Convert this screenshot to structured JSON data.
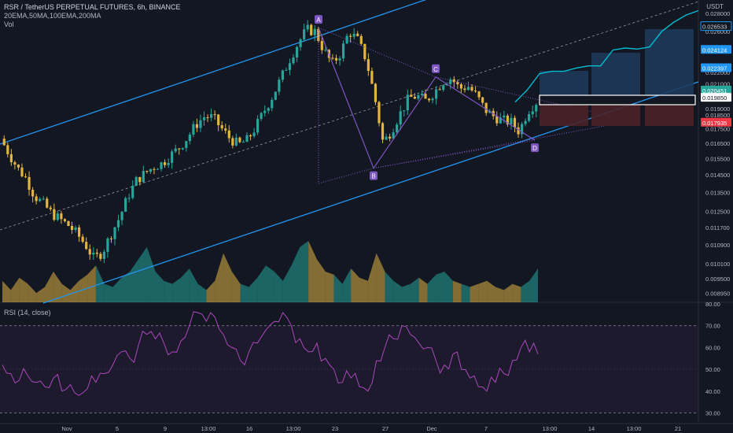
{
  "header": {
    "symbol_line": "RSR / TetherUS PERPETUAL FUTURES, 6h, BINANCE",
    "indicators_line": "20EMA,50MA,100EMA,200MA",
    "vol_label": "Vol",
    "currency": "USDT",
    "rsi_label": "RSI (14, close)"
  },
  "colors": {
    "background": "#131722",
    "up": "#26a69a",
    "down": "#e2b443",
    "channel": "#2196f3",
    "pattern": "#7e57c2",
    "forecast": "#00bcd4",
    "rsi": "#ab47bc",
    "marker_green": "#26a69a",
    "marker_red": "#f23645"
  },
  "chart_data": [
    {
      "type": "candlestick",
      "title": "RSR / TetherUS PERPETUAL FUTURES, 6h, BINANCE",
      "y_scale": "log",
      "ylim": [
        0.0088,
        0.0288
      ],
      "price_ticks": [
        "0.028000",
        "0.026000",
        "0.024000",
        "0.022000",
        "0.021000",
        "0.019000",
        "0.018500",
        "0.017500",
        "0.016500",
        "0.015500",
        "0.014500",
        "0.013500",
        "0.012500",
        "0.011700",
        "0.010900",
        "0.010100",
        "0.009500",
        "0.008950"
      ],
      "x_ticks": [
        "Nov",
        "5",
        "9",
        "13:00",
        "16",
        "13:00",
        "23",
        "27",
        "Dec",
        "7",
        "13:00",
        "14",
        "13:00",
        "21"
      ],
      "price_labels": [
        {
          "value": "0.026533",
          "style": "outline"
        },
        {
          "value": "0.024124",
          "style": "blue"
        },
        {
          "value": "0.022397",
          "style": "blue"
        },
        {
          "value": "0.020451",
          "style": "green"
        },
        {
          "value": "0.019850",
          "style": "white"
        },
        {
          "value": "0.017935",
          "style": "red"
        }
      ],
      "pattern_points": [
        {
          "label": "A",
          "value": 0.0264
        },
        {
          "label": "B",
          "value": 0.0149
        },
        {
          "label": "C",
          "value": 0.0216
        },
        {
          "label": "D",
          "value": 0.0167
        }
      ],
      "close_path": [
        0.0168,
        0.0158,
        0.0149,
        0.0143,
        0.0133,
        0.0129,
        0.0124,
        0.0121,
        0.0118,
        0.0114,
        0.0109,
        0.0103,
        0.0106,
        0.0114,
        0.0122,
        0.0133,
        0.0142,
        0.0146,
        0.015,
        0.0152,
        0.0157,
        0.0162,
        0.0169,
        0.0178,
        0.0184,
        0.0183,
        0.0175,
        0.0168,
        0.0164,
        0.0167,
        0.0176,
        0.0188,
        0.02,
        0.0215,
        0.0232,
        0.0248,
        0.0262,
        0.026,
        0.0241,
        0.0228,
        0.0238,
        0.026,
        0.0251,
        0.0232,
        0.0199,
        0.0165,
        0.0174,
        0.0186,
        0.0198,
        0.02,
        0.0196,
        0.0203,
        0.0212,
        0.0215,
        0.0206,
        0.0208,
        0.02,
        0.0189,
        0.0184,
        0.0181,
        0.018,
        0.0173,
        0.0188,
        0.0195
      ],
      "forecast_path": [
        0.0195,
        0.0205,
        0.0219,
        0.0221,
        0.0221,
        0.0224,
        0.0226,
        0.0226,
        0.0241,
        0.0243,
        0.0242,
        0.0244,
        0.026,
        0.027,
        0.0278,
        0.0283
      ],
      "volume_relative": [
        0.35,
        0.2,
        0.4,
        0.3,
        0.15,
        0.25,
        0.5,
        0.3,
        0.2,
        0.35,
        0.45,
        0.6,
        0.3,
        0.25,
        0.4,
        0.5,
        0.7,
        0.9,
        0.5,
        0.35,
        0.3,
        0.4,
        0.55,
        0.3,
        0.2,
        0.35,
        0.8,
        0.5,
        0.3,
        0.25,
        0.4,
        0.6,
        0.5,
        0.35,
        0.6,
        0.9,
        1.0,
        0.7,
        0.5,
        0.45,
        0.3,
        0.55,
        0.4,
        0.35,
        0.8,
        0.5,
        0.35,
        0.25,
        0.3,
        0.4,
        0.3,
        0.45,
        0.5,
        0.35,
        0.3,
        0.25,
        0.3,
        0.35,
        0.25,
        0.2,
        0.3,
        0.25,
        0.35,
        0.55
      ]
    },
    {
      "type": "line",
      "title": "RSI (14, close)",
      "ylim": [
        28,
        80
      ],
      "y_ticks": [
        "80.00",
        "70.00",
        "60.00",
        "50.00",
        "40.00",
        "30.00"
      ],
      "bands": [
        70,
        30
      ],
      "values": [
        52,
        48,
        45,
        47,
        44,
        42,
        46,
        40,
        43,
        38,
        41,
        44,
        48,
        52,
        58,
        55,
        61,
        66,
        64,
        62,
        58,
        63,
        70,
        76,
        72,
        74,
        66,
        60,
        54,
        58,
        62,
        68,
        72,
        76,
        70,
        64,
        58,
        62,
        55,
        50,
        44,
        46,
        42,
        40,
        54,
        60,
        64,
        70,
        66,
        62,
        60,
        54,
        52,
        57,
        50,
        46,
        42,
        40,
        44,
        48,
        54,
        60,
        58,
        57
      ]
    }
  ]
}
